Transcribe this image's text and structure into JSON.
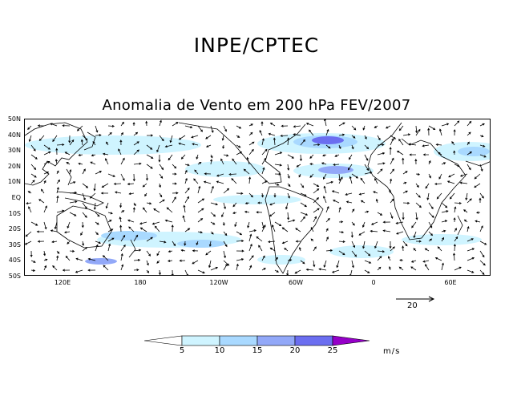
{
  "header": "INPE/CPTEC",
  "title": "Anomalia de Vento em 200 hPa FEV/2007",
  "map": {
    "lat_labels": [
      "50N",
      "40N",
      "30N",
      "20N",
      "10N",
      "EQ",
      "10S",
      "20S",
      "30S",
      "40S",
      "50S"
    ],
    "lon_labels": [
      "120E",
      "180",
      "120W",
      "60W",
      "0",
      "60E"
    ],
    "lat_range": [
      -50,
      50
    ],
    "lon_range": [
      90,
      440
    ],
    "shading_colors": {
      "lt5": "#ffffff",
      "5-10": "#cff4ff",
      "10-15": "#a9d9ff",
      "15-20": "#92a8f8",
      "20-25": "#6b6ef0",
      "gt25": "#9500c8"
    }
  },
  "reference_vector": {
    "value": "20"
  },
  "colorbar": {
    "labels": [
      "5",
      "10",
      "15",
      "20",
      "25"
    ],
    "units": "m/s",
    "colors": [
      "#ffffff",
      "#cff4ff",
      "#a9d9ff",
      "#92a8f8",
      "#6b6ef0",
      "#9500c8"
    ]
  }
}
